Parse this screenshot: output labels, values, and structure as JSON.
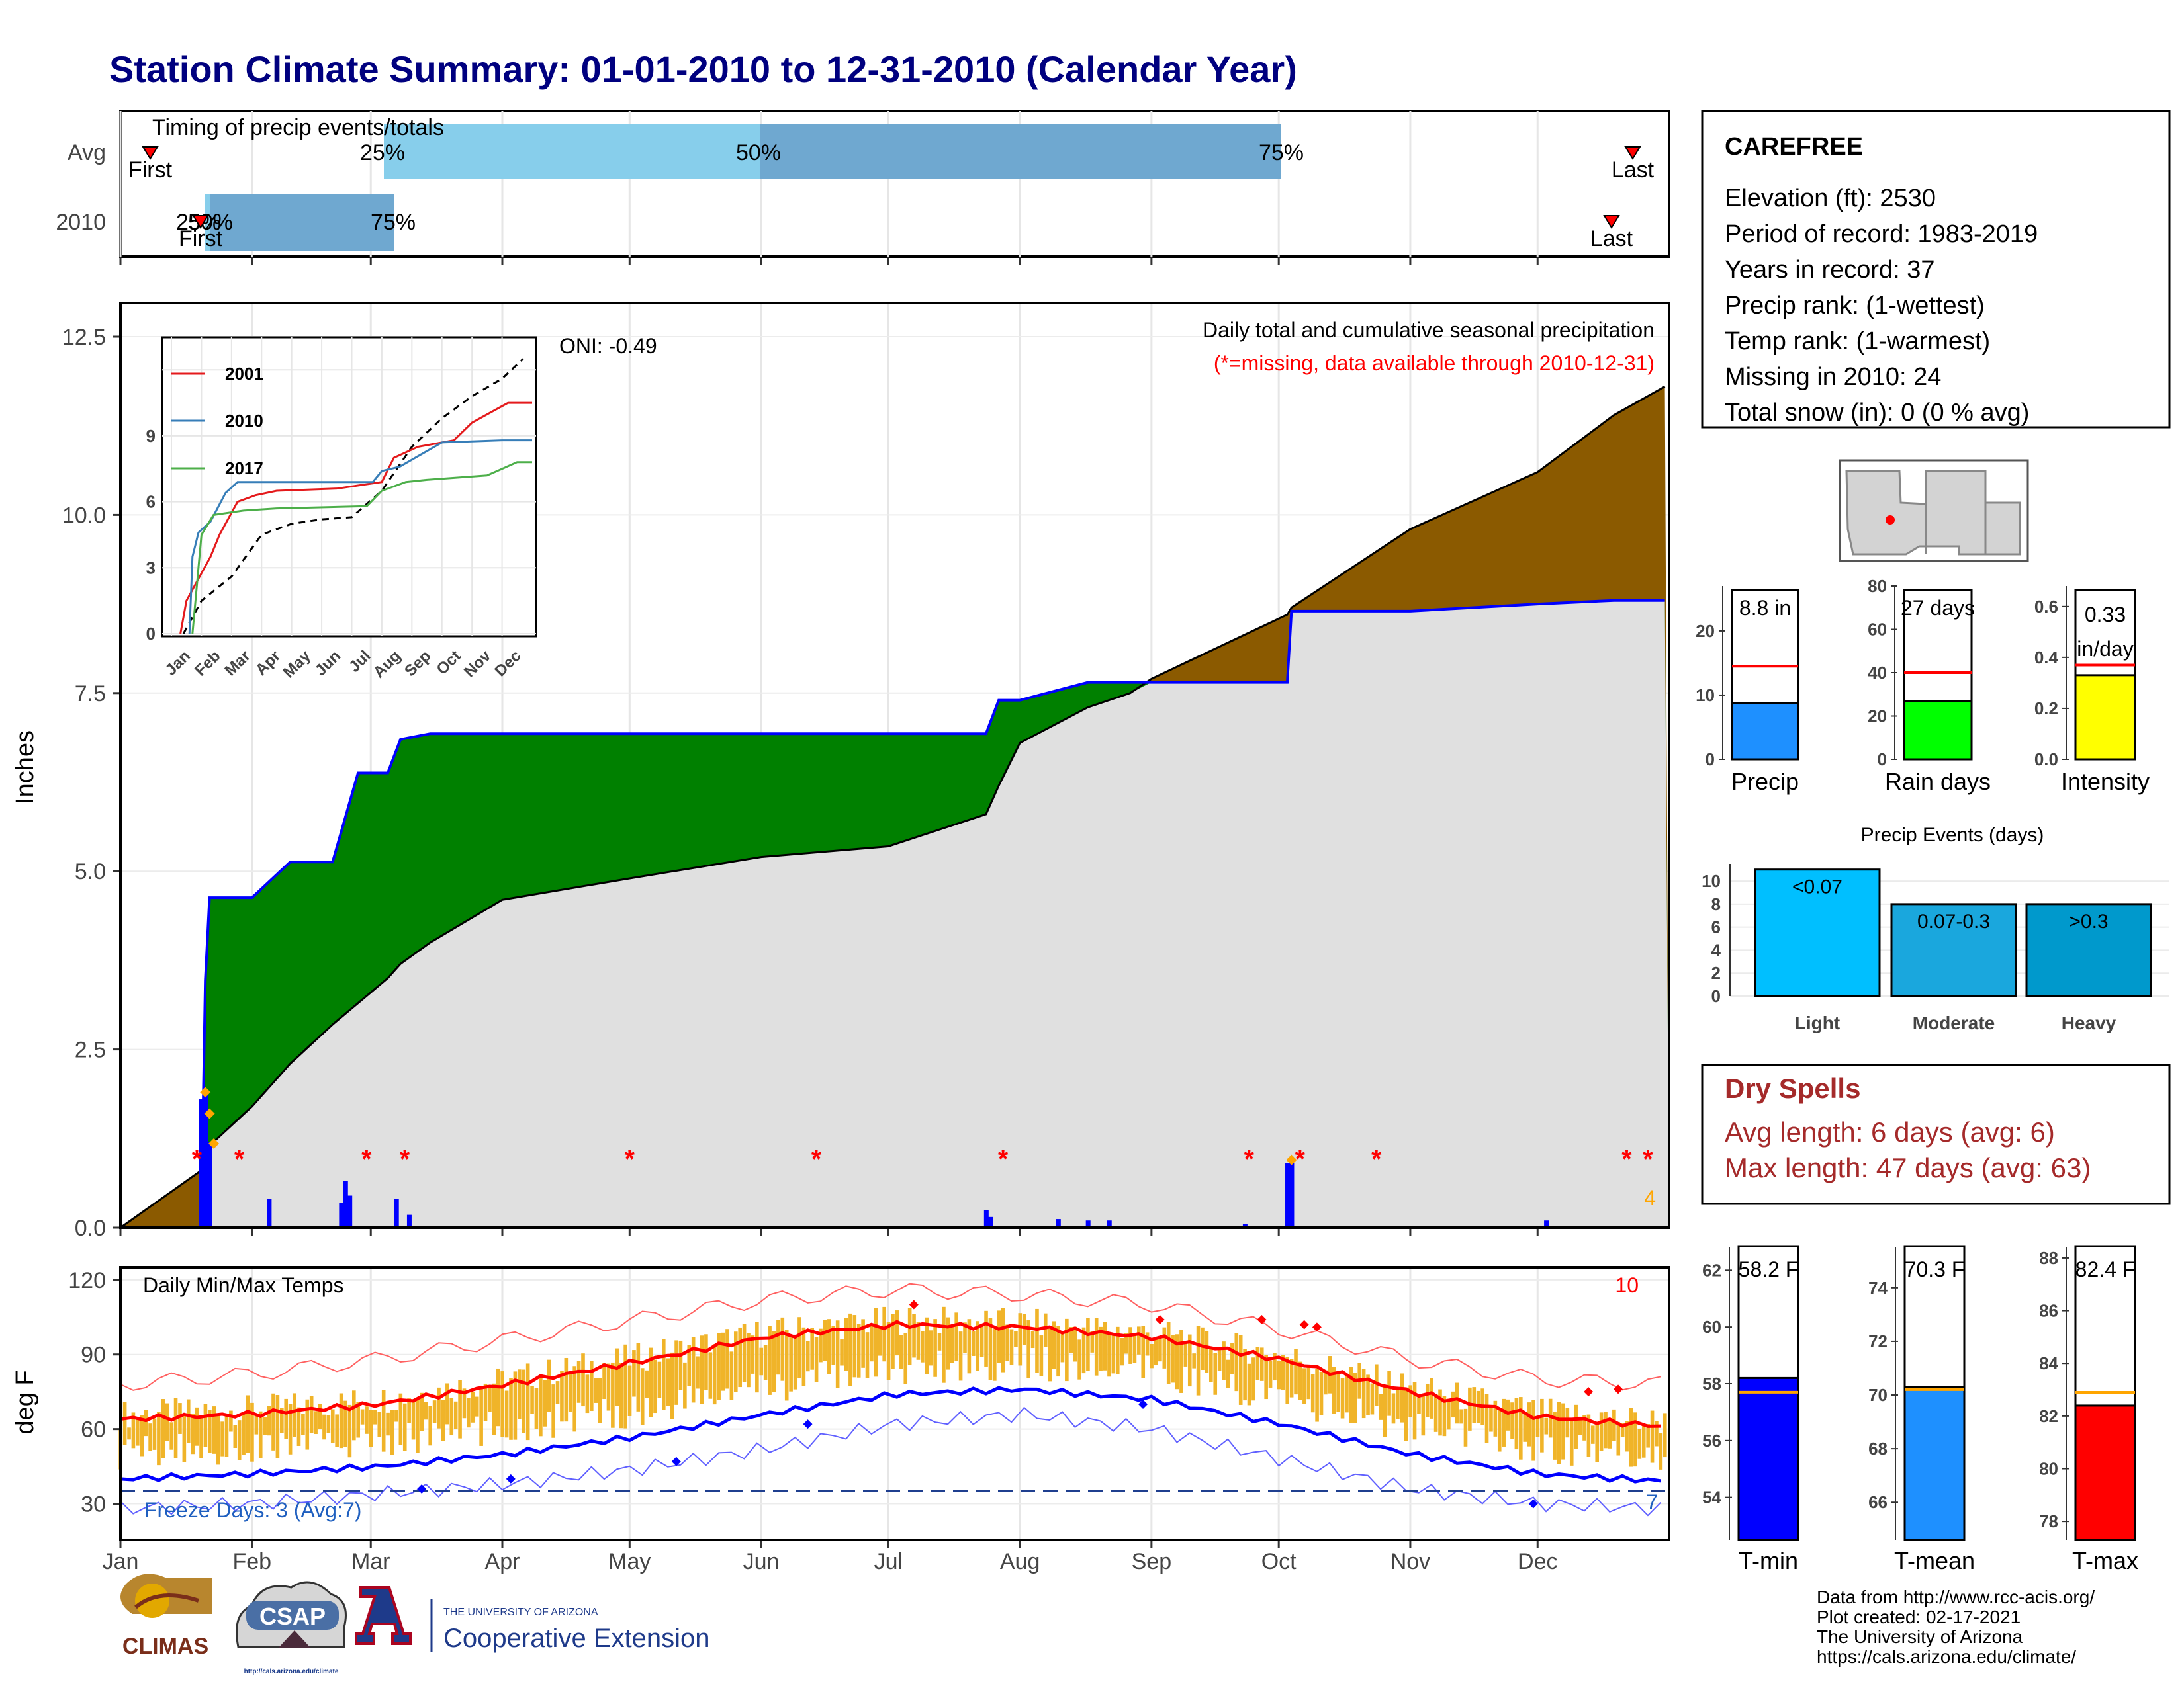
{
  "title": "Station Climate Summary: 01-01-2010 to 12-31-2010 (Calendar Year)",
  "colors": {
    "title": "#00007f",
    "obs_cum": "#e0e0e0",
    "obs_line": "#0000ff",
    "above_avg": "#008000",
    "below_avg": "#8b5a00",
    "daily_bar": "#0000ff",
    "missing": "#ff0000",
    "temp_bar": "#f0b429",
    "tmax": "#ff0000",
    "tmin": "#0000ff",
    "tmean_bar": "#1e90ff",
    "dry_spell": "#a52a2a"
  },
  "timing": {
    "title": "Timing of precip events/totals",
    "rows": [
      {
        "label": "Avg",
        "first_label": "First",
        "last_label": "Last",
        "p25": "25%",
        "p50": "50%",
        "p75": "75%"
      },
      {
        "label": "2010",
        "first_label": "First",
        "last_label": "Last",
        "p25": "25%",
        "p50": "50%",
        "p75": "75%"
      }
    ]
  },
  "station": {
    "name": "CAREFREE",
    "lines": [
      "Elevation (ft): 2530",
      "Period of record: 1983-2019",
      "Years in record: 37",
      "Precip rank:  (1-wettest)",
      "Temp rank:  (1-warmest)",
      "Missing in 2010: 24",
      "Total snow (in): 0 (0 % avg)"
    ]
  },
  "precip_panel": {
    "ylabel": "Inches",
    "caption": "Daily total and cumulative seasonal precipitation",
    "missing_note": "(*=missing, data available through 2010-12-31)",
    "oni": "ONI: -0.49",
    "corner_count": "4",
    "y_ticks": [
      "0.0",
      "2.5",
      "5.0",
      "7.5",
      "10.0",
      "12.5"
    ]
  },
  "inset": {
    "legend": [
      "2001",
      "2010",
      "2017"
    ],
    "y_ticks": [
      "0",
      "3",
      "6",
      "9"
    ],
    "x_ticks": [
      "Jan",
      "Feb",
      "Mar",
      "Apr",
      "May",
      "Jun",
      "Jul",
      "Aug",
      "Sep",
      "Oct",
      "Nov",
      "Dec"
    ]
  },
  "temp_panel": {
    "ylabel": "deg F",
    "title": "Daily Min/Max Temps",
    "corner_count": "10",
    "freeze_note": "Freeze Days: 3 (Avg:7)",
    "freeze_count": "7",
    "y_ticks": [
      "30",
      "60",
      "90",
      "120"
    ]
  },
  "months": [
    "Jan",
    "Feb",
    "Mar",
    "Apr",
    "May",
    "Jun",
    "Jul",
    "Aug",
    "Sep",
    "Oct",
    "Nov",
    "Dec"
  ],
  "mini": {
    "precip": {
      "label": "Precip",
      "value_text": "8.8 in",
      "y_ticks": [
        "0",
        "10",
        "20"
      ]
    },
    "raindays": {
      "label": "Rain days",
      "value_text": "27 days",
      "y_ticks": [
        "0",
        "20",
        "40",
        "60",
        "80"
      ]
    },
    "intensity": {
      "label": "Intensity",
      "value_line1": "0.33",
      "value_line2": "in/day",
      "y_ticks": [
        "0.0",
        "0.2",
        "0.4",
        "0.6"
      ]
    }
  },
  "events": {
    "title": "Precip Events (days)",
    "y_ticks": [
      "0",
      "2",
      "4",
      "6",
      "8",
      "10"
    ],
    "bars": [
      {
        "category": "Light",
        "label": "<0.07"
      },
      {
        "category": "Moderate",
        "label": "0.07-0.3"
      },
      {
        "category": "Heavy",
        "label": ">0.3"
      }
    ]
  },
  "dry_spells": {
    "title": "Dry Spells",
    "avg_line": "Avg length: 6 days (avg: 6)",
    "max_line": "Max length: 47 days (avg: 63)"
  },
  "temps_mini": {
    "tmin": {
      "label": "T-min",
      "value_text": "58.2 F",
      "y_ticks": [
        "54",
        "56",
        "58",
        "60",
        "62"
      ]
    },
    "tmean": {
      "label": "T-mean",
      "value_text": "70.3 F",
      "y_ticks": [
        "66",
        "68",
        "70",
        "72",
        "74"
      ]
    },
    "tmax": {
      "label": "T-max",
      "value_text": "82.4 F",
      "y_ticks": [
        "78",
        "80",
        "82",
        "84",
        "86",
        "88"
      ]
    }
  },
  "logos": {
    "climas": "CLIMAS",
    "csap": "CSAP",
    "csap_url": "http://cals.arizona.edu/climate",
    "ua_line1": "THE UNIVERSITY OF ARIZONA",
    "ua_line2": "Cooperative Extension"
  },
  "credits": [
    "Data from http://www.rcc-acis.org/",
    "Plot created: 02-17-2021",
    "The University of Arizona",
    "https://cals.arizona.edu/climate/"
  ],
  "chart_data": [
    {
      "type": "area",
      "name": "cumulative precipitation",
      "x": [
        "2010-01-01",
        "2010-01-20",
        "2010-01-21",
        "2010-01-22",
        "2010-02-01",
        "2010-02-10",
        "2010-02-20",
        "2010-02-26",
        "2010-03-05",
        "2010-03-08",
        "2010-03-15",
        "2010-04-01",
        "2010-05-01",
        "2010-06-01",
        "2010-07-01",
        "2010-07-24",
        "2010-07-27",
        "2010-08-01",
        "2010-08-17",
        "2010-08-27",
        "2010-09-01",
        "2010-10-03",
        "2010-10-04",
        "2010-11-01",
        "2010-12-01",
        "2010-12-19",
        "2010-12-31"
      ],
      "series": [
        {
          "name": "2010",
          "values": [
            0.0,
            0.0,
            3.47,
            4.63,
            4.63,
            5.13,
            5.13,
            6.38,
            6.38,
            6.85,
            6.93,
            6.93,
            6.93,
            6.93,
            6.93,
            6.93,
            7.4,
            7.4,
            7.65,
            7.65,
            7.65,
            7.65,
            8.65,
            8.65,
            8.75,
            8.8,
            8.8
          ]
        },
        {
          "name": "average",
          "values": [
            0.0,
            0.8,
            0.9,
            1.15,
            1.7,
            2.3,
            2.85,
            3.15,
            3.5,
            3.7,
            4.0,
            4.6,
            4.9,
            5.2,
            5.35,
            5.8,
            6.2,
            6.8,
            7.3,
            7.5,
            7.7,
            8.6,
            8.7,
            9.8,
            10.6,
            11.4,
            11.8
          ]
        }
      ],
      "ylabel": "Inches",
      "ylim": [
        0,
        13
      ],
      "legend": "none"
    },
    {
      "type": "bar",
      "name": "daily precipitation",
      "categories": [
        "2010-01-20",
        "2010-01-21",
        "2010-01-22",
        "2010-02-05",
        "2010-02-22",
        "2010-02-23",
        "2010-02-24",
        "2010-03-07",
        "2010-03-10",
        "2010-07-24",
        "2010-07-25",
        "2010-08-10",
        "2010-08-17",
        "2010-08-22",
        "2010-09-23",
        "2010-10-03",
        "2010-10-04",
        "2010-12-03"
      ],
      "values": [
        1.8,
        1.9,
        1.2,
        0.4,
        0.35,
        0.65,
        0.45,
        0.4,
        0.18,
        0.25,
        0.15,
        0.12,
        0.1,
        0.1,
        0.05,
        0.9,
        0.9,
        0.1
      ],
      "ylim": [
        0,
        13
      ]
    },
    {
      "type": "line",
      "name": "daily min/max temps",
      "x": [
        "Jan",
        "Feb",
        "Mar",
        "Apr",
        "May",
        "Jun",
        "Jul",
        "Aug",
        "Sep",
        "Oct",
        "Nov",
        "Dec",
        "Dec-end"
      ],
      "series": [
        {
          "name": "avg max",
          "values": [
            64,
            66,
            70,
            78,
            87,
            97,
            102,
            101,
            97,
            88,
            75,
            65,
            61
          ]
        },
        {
          "name": "avg min",
          "values": [
            40,
            42,
            45,
            50,
            57,
            66,
            74,
            76,
            72,
            62,
            50,
            42,
            39
          ]
        },
        {
          "name": "record max",
          "values": [
            78,
            82,
            88,
            96,
            104,
            112,
            116,
            114,
            110,
            100,
            88,
            80,
            78
          ]
        },
        {
          "name": "record min",
          "values": [
            28,
            30,
            34,
            38,
            44,
            52,
            62,
            66,
            60,
            48,
            36,
            30,
            28
          ]
        }
      ],
      "ylim": [
        15,
        125
      ],
      "ylabel": "deg F",
      "freeze_line": 32
    },
    {
      "type": "bar",
      "name": "Precip Events (days)",
      "categories": [
        "Light",
        "Moderate",
        "Heavy"
      ],
      "values": [
        11,
        8,
        8
      ],
      "ylim": [
        0,
        11.5
      ]
    },
    {
      "type": "bar",
      "name": "seasonal summary",
      "categories": [
        "Precip",
        "Rain days",
        "Intensity"
      ],
      "values": [
        8.8,
        27,
        0.33
      ],
      "averages": [
        14.5,
        40,
        0.37
      ]
    },
    {
      "type": "bar",
      "name": "temperature summary",
      "categories": [
        "T-min",
        "T-mean",
        "T-max"
      ],
      "values": [
        58.2,
        70.3,
        82.4
      ],
      "averages": [
        57.7,
        70.2,
        82.9
      ]
    }
  ]
}
